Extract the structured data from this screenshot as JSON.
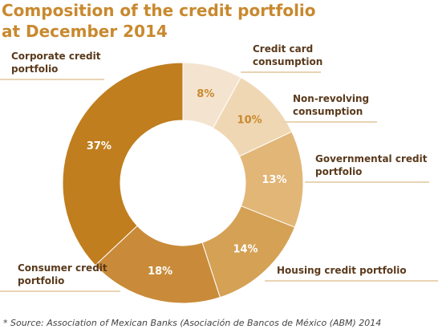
{
  "chart_data": {
    "type": "donut",
    "title": "Composition of the credit portfolio at December 2014",
    "categories": [
      "Credit card consumption",
      "Non-revolving consumption",
      "Governmental credit portfolio",
      "Housing credit portfolio",
      "Consumer credit portfolio",
      "Corporate credit portfolio"
    ],
    "values": [
      8,
      10,
      13,
      14,
      18,
      37
    ],
    "value_labels": [
      "8%",
      "10%",
      "13%",
      "14%",
      "18%",
      "37%"
    ],
    "colors": [
      "#f4e4cf",
      "#f0d7b3",
      "#e2b677",
      "#d5a155",
      "#c98b39",
      "#c07e1f"
    ],
    "source": "* Source: Association of Mexican Banks (Asociación de Bancos de México (ABM) 2014"
  }
}
